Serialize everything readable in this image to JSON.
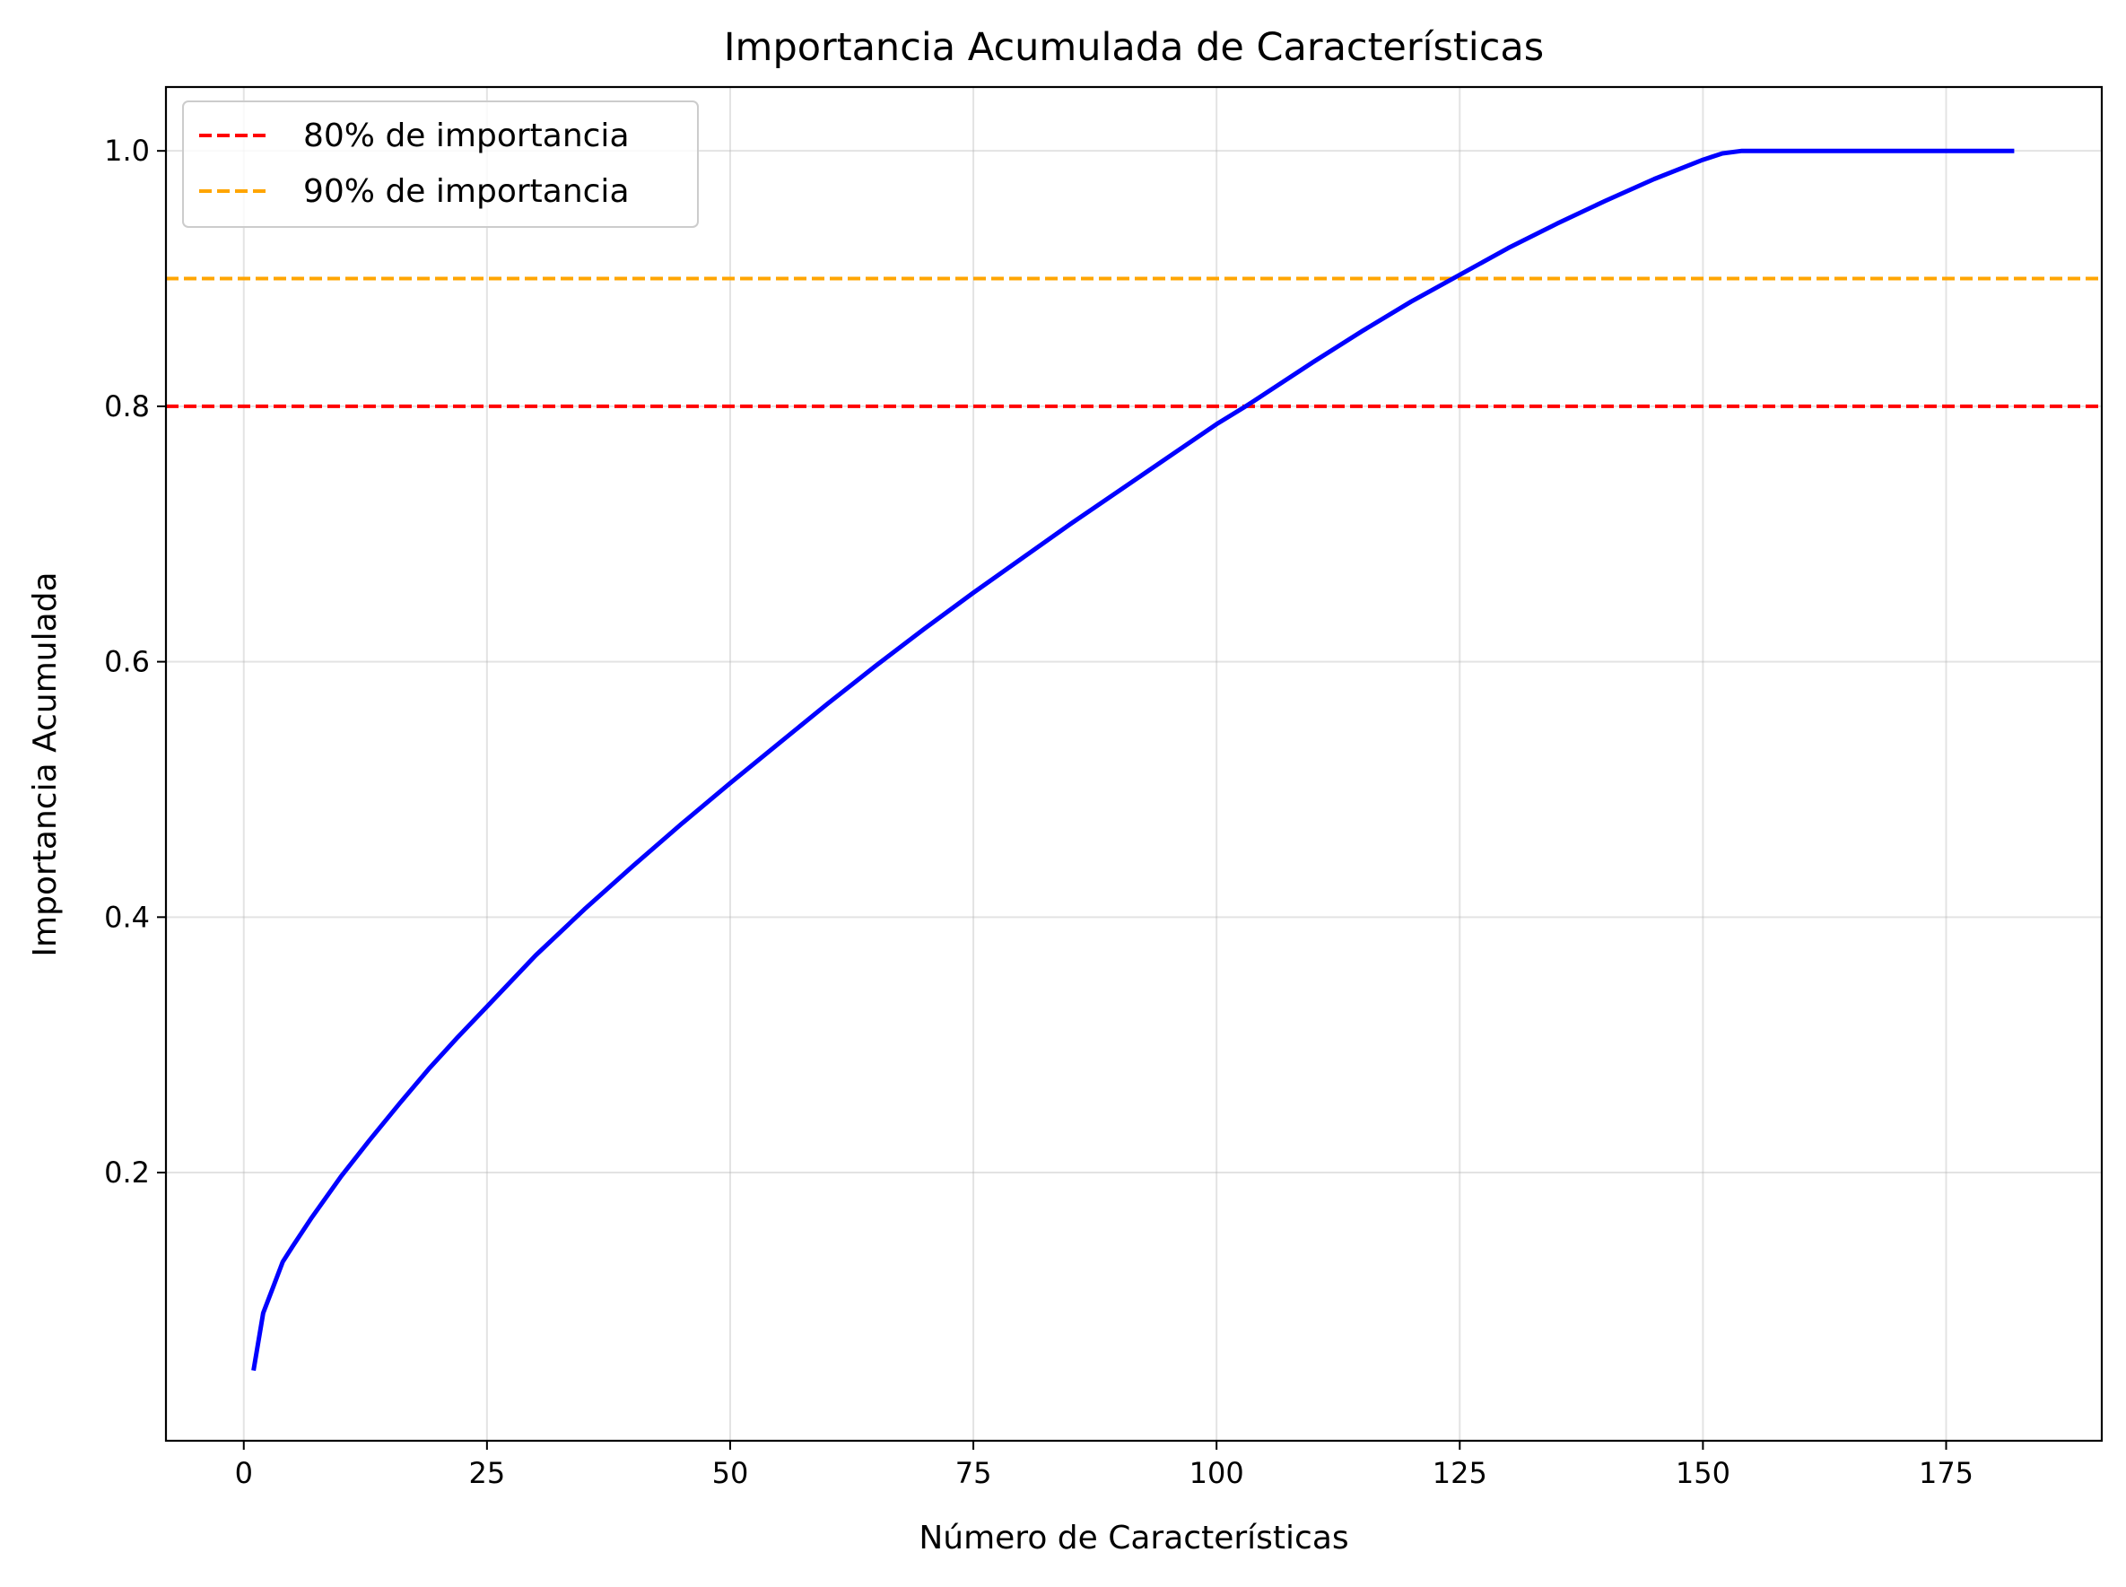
{
  "chart_data": {
    "type": "line",
    "title": "Importancia Acumulada de Características",
    "xlabel": "Número de Características",
    "ylabel": "Importancia Acumulada",
    "xlim": [
      -8,
      191
    ],
    "ylim": [
      -0.01,
      1.05
    ],
    "xticks": [
      0,
      25,
      50,
      75,
      100,
      125,
      150,
      175
    ],
    "xtick_labels": [
      "0",
      "25",
      "50",
      "75",
      "100",
      "125",
      "150",
      "175"
    ],
    "yticks": [
      0.2,
      0.4,
      0.6,
      0.8,
      1.0
    ],
    "ytick_labels": [
      "0.2",
      "0.4",
      "0.6",
      "0.8",
      "1.0"
    ],
    "grid": true,
    "legend_position": "top-left",
    "series": [
      {
        "color": "#0000ff",
        "x": [
          1,
          2,
          3,
          4,
          5,
          7,
          10,
          13,
          16,
          19,
          22,
          25,
          30,
          35,
          40,
          45,
          50,
          55,
          60,
          65,
          70,
          75,
          80,
          85,
          90,
          95,
          100,
          103,
          105,
          110,
          115,
          120,
          125,
          130,
          135,
          140,
          145,
          150,
          152,
          154,
          160,
          170,
          182
        ],
        "y": [
          0.045,
          0.09,
          0.11,
          0.13,
          0.142,
          0.165,
          0.197,
          0.226,
          0.254,
          0.281,
          0.306,
          0.33,
          0.37,
          0.406,
          0.44,
          0.473,
          0.505,
          0.536,
          0.567,
          0.597,
          0.626,
          0.654,
          0.681,
          0.708,
          0.734,
          0.76,
          0.786,
          0.8,
          0.81,
          0.835,
          0.859,
          0.882,
          0.903,
          0.924,
          0.943,
          0.961,
          0.978,
          0.993,
          0.998,
          1.0,
          1.0,
          1.0,
          1.0
        ]
      }
    ],
    "reference_lines": [
      {
        "label": "80% de importancia",
        "y": 0.8,
        "color": "#ff0000",
        "style": "dashed"
      },
      {
        "label": "90% de importancia",
        "y": 0.9,
        "color": "#ffa500",
        "style": "dashed"
      }
    ]
  }
}
